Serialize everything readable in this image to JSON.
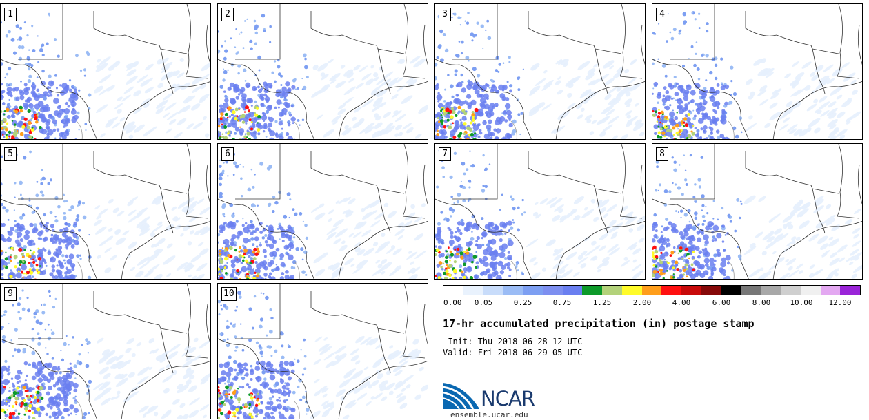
{
  "panels": [
    {
      "label": "1",
      "seed": 11
    },
    {
      "label": "2",
      "seed": 23
    },
    {
      "label": "3",
      "seed": 37
    },
    {
      "label": "4",
      "seed": 41
    },
    {
      "label": "5",
      "seed": 53
    },
    {
      "label": "6",
      "seed": 67
    },
    {
      "label": "7",
      "seed": 71
    },
    {
      "label": "8",
      "seed": 83
    },
    {
      "label": "9",
      "seed": 97
    },
    {
      "label": "10",
      "seed": 101
    }
  ],
  "legend": {
    "colors": [
      "#ffffff",
      "#e9f2fd",
      "#c8dcfa",
      "#9bbcf5",
      "#7d9ff2",
      "#7d8ff0",
      "#6a7ff0",
      "#0d9a2a",
      "#b3d27a",
      "#fffb2a",
      "#ff9e1b",
      "#ff1010",
      "#c80a0a",
      "#860909",
      "#000000",
      "#777777",
      "#a8a8a8",
      "#cfcfcf",
      "#f0f0f0",
      "#e3a8f1",
      "#9a24d8"
    ],
    "ticks": [
      "0.00",
      "0.05",
      "0.25",
      "0.75",
      "1.25",
      "2.00",
      "4.00",
      "6.00",
      "8.00",
      "10.00",
      "12.00"
    ]
  },
  "title": "17-hr accumulated precipitation (in) postage stamp",
  "init": " Init: Thu 2018-06-28 12 UTC",
  "valid": "Valid: Fri 2018-06-29 05 UTC",
  "logo": {
    "text": "NCAR",
    "site": "ensemble.ucar.edu"
  }
}
